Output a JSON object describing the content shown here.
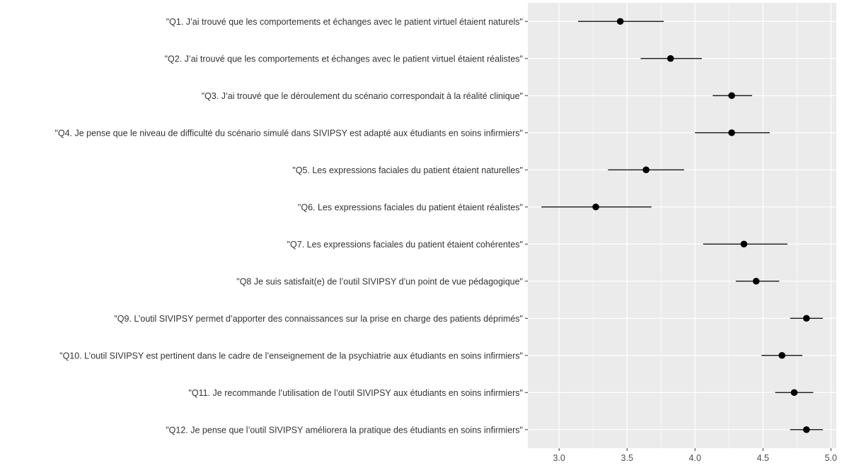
{
  "chart_data": {
    "type": "scatter",
    "subtype": "point-range (mean with error bars)",
    "title": "",
    "xlabel": "",
    "ylabel": "",
    "xlim": [
      2.77,
      5.04
    ],
    "x_ticks": [
      3.0,
      3.5,
      4.0,
      4.5,
      5.0
    ],
    "x_tick_labels": [
      "3.0",
      "3.5",
      "4.0",
      "4.5",
      "5.0"
    ],
    "grid": true,
    "legend": "none",
    "colors": {
      "panel": "#ebebeb",
      "grid_major": "#ffffff",
      "point": "#000000"
    },
    "categories": [
      "\"Q1. J’ai trouvé que les comportements et échanges avec le patient virtuel étaient naturels\"",
      "\"Q2. J’ai trouvé que les comportements et échanges avec le patient virtuel étaient réalistes\"",
      "\"Q3. J’ai trouvé que le déroulement du scénario correspondait à la réalité clinique\"",
      "\"Q4. Je pense que le niveau de difficulté du scénario simulé dans SIVIPSY est adapté aux étudiants en soins infirmiers\"",
      "\"Q5. Les expressions faciales du patient étaient naturelles\"",
      "\"Q6. Les expressions faciales du patient étaient réalistes\"",
      "\"Q7. Les expressions faciales du patient étaient cohérentes\"",
      "\"Q8 Je suis satisfait(e) de l’outil SIVIPSY d’un point de vue pédagogique\"",
      "\"Q9. L’outil SIVIPSY permet d’apporter des connaissances sur la prise en charge des patients déprimés\"",
      "\"Q10. L’outil SIVIPSY est pertinent dans le cadre de l’enseignement de la psychiatrie aux étudiants en soins infirmiers\"",
      "\"Q11. Je recommande l’utilisation de l’outil SIVIPSY aux étudiants en soins infirmiers\"",
      "\"Q12. Je pense que l’outil SIVIPSY améliorera la pratique des étudiants en soins infirmiers\""
    ],
    "values": [
      3.45,
      3.82,
      4.27,
      4.27,
      3.64,
      3.27,
      4.36,
      4.45,
      4.82,
      4.64,
      4.73,
      4.82
    ],
    "lower": [
      3.14,
      3.6,
      4.13,
      4.0,
      3.36,
      2.87,
      4.06,
      4.3,
      4.7,
      4.49,
      4.59,
      4.7
    ],
    "upper": [
      3.77,
      4.05,
      4.42,
      4.55,
      3.92,
      3.68,
      4.68,
      4.62,
      4.94,
      4.79,
      4.87,
      4.94
    ]
  }
}
